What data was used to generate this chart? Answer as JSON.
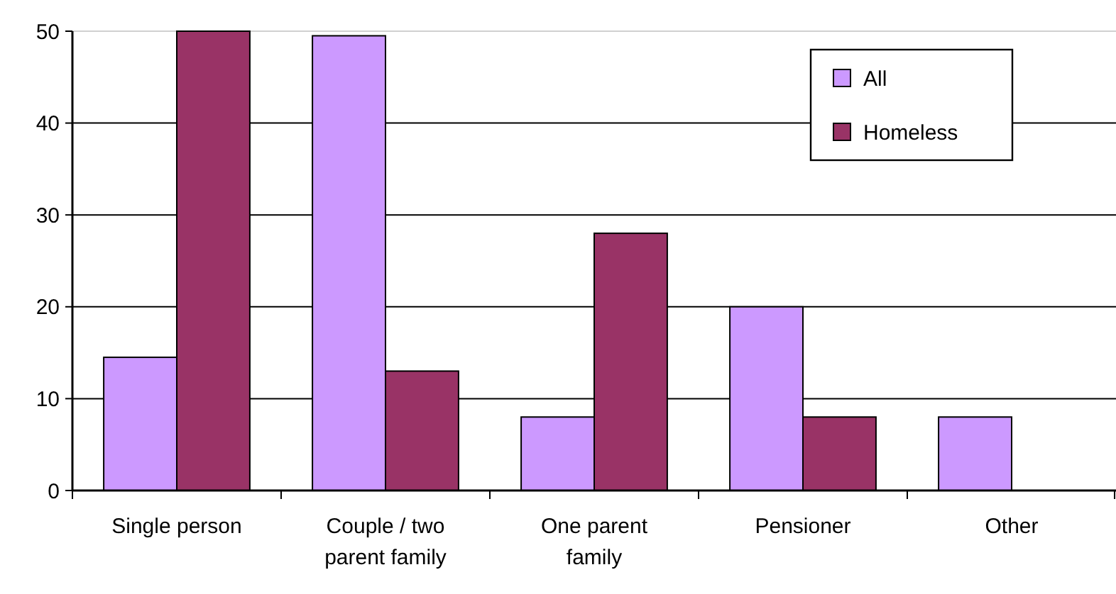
{
  "chart_data": {
    "type": "bar",
    "categories": [
      "Single person",
      "Couple / two parent family",
      "One parent family",
      "Pensioner",
      "Other"
    ],
    "series": [
      {
        "name": "All",
        "color": "#cc99ff",
        "values": [
          14.5,
          49.5,
          8,
          20,
          8
        ]
      },
      {
        "name": "Homeless",
        "color": "#993366",
        "values": [
          50,
          13,
          28,
          8,
          null
        ]
      }
    ],
    "ylim": [
      0,
      50
    ],
    "yticks": [
      0,
      10,
      20,
      30,
      40,
      50
    ],
    "grid": "y",
    "legend": "top right"
  }
}
